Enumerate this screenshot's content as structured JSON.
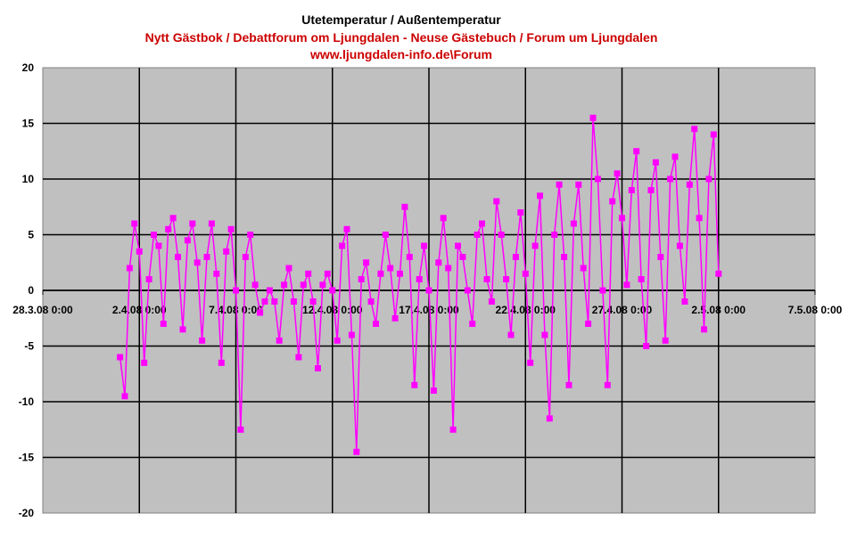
{
  "chart_data": {
    "type": "line",
    "title": "Utetemperatur / Außentemperatur",
    "subtitle_lines": [
      "Nytt Gästbok / Debattforum om Ljungdalen - Neuse Gästebuch / Forum um Ljungdalen",
      "www.ljungdalen-info.de\\Forum"
    ],
    "xlabel": "",
    "ylabel": "",
    "x_axis": {
      "type": "date",
      "range": [
        "2008-03-28T00:00",
        "2008-05-07T00:00"
      ],
      "tick_labels": [
        "28.3.08 0:00",
        "2.4.08 0:00",
        "7.4.08 0:00",
        "12.4.08 0:00",
        "17.4.08 0:00",
        "22.4.08 0:00",
        "27.4.08 0:00",
        "2.5.08 0:00",
        "7.5.08 0:00"
      ]
    },
    "ylim": [
      -20,
      20
    ],
    "y_ticks": [
      -20,
      -15,
      -10,
      -5,
      0,
      5,
      10,
      15,
      20
    ],
    "grid": true,
    "legend": "none",
    "colors": {
      "plot_background": "#c0c0c0",
      "series": "#ff00ff",
      "grid": "#000000",
      "title": "#000000",
      "subtitle": "#cc0000"
    },
    "series": [
      {
        "marker": "square",
        "points": [
          [
            "2008-04-01T00:00",
            -6.0
          ],
          [
            "2008-04-01T06:00",
            -9.5
          ],
          [
            "2008-04-01T12:00",
            2.0
          ],
          [
            "2008-04-01T18:00",
            6.0
          ],
          [
            "2008-04-02T00:00",
            3.5
          ],
          [
            "2008-04-02T06:00",
            -6.5
          ],
          [
            "2008-04-02T12:00",
            1.0
          ],
          [
            "2008-04-02T18:00",
            5.0
          ],
          [
            "2008-04-03T00:00",
            4.0
          ],
          [
            "2008-04-03T06:00",
            -3.0
          ],
          [
            "2008-04-03T12:00",
            5.5
          ],
          [
            "2008-04-03T18:00",
            6.5
          ],
          [
            "2008-04-04T00:00",
            3.0
          ],
          [
            "2008-04-04T06:00",
            -3.5
          ],
          [
            "2008-04-04T12:00",
            4.5
          ],
          [
            "2008-04-04T18:00",
            6.0
          ],
          [
            "2008-04-05T00:00",
            2.5
          ],
          [
            "2008-04-05T06:00",
            -4.5
          ],
          [
            "2008-04-05T12:00",
            3.0
          ],
          [
            "2008-04-05T18:00",
            6.0
          ],
          [
            "2008-04-06T00:00",
            1.5
          ],
          [
            "2008-04-06T06:00",
            -6.5
          ],
          [
            "2008-04-06T12:00",
            3.5
          ],
          [
            "2008-04-06T18:00",
            5.5
          ],
          [
            "2008-04-07T00:00",
            0.0
          ],
          [
            "2008-04-07T06:00",
            -12.5
          ],
          [
            "2008-04-07T12:00",
            3.0
          ],
          [
            "2008-04-07T18:00",
            5.0
          ],
          [
            "2008-04-08T00:00",
            0.5
          ],
          [
            "2008-04-08T06:00",
            -2.0
          ],
          [
            "2008-04-08T12:00",
            -1.0
          ],
          [
            "2008-04-08T18:00",
            0.0
          ],
          [
            "2008-04-09T00:00",
            -1.0
          ],
          [
            "2008-04-09T06:00",
            -4.5
          ],
          [
            "2008-04-09T12:00",
            0.5
          ],
          [
            "2008-04-09T18:00",
            2.0
          ],
          [
            "2008-04-10T00:00",
            -1.0
          ],
          [
            "2008-04-10T06:00",
            -6.0
          ],
          [
            "2008-04-10T12:00",
            0.5
          ],
          [
            "2008-04-10T18:00",
            1.5
          ],
          [
            "2008-04-11T00:00",
            -1.0
          ],
          [
            "2008-04-11T06:00",
            -7.0
          ],
          [
            "2008-04-11T12:00",
            0.5
          ],
          [
            "2008-04-11T18:00",
            1.5
          ],
          [
            "2008-04-12T00:00",
            0.0
          ],
          [
            "2008-04-12T06:00",
            -4.5
          ],
          [
            "2008-04-12T12:00",
            4.0
          ],
          [
            "2008-04-12T18:00",
            5.5
          ],
          [
            "2008-04-13T00:00",
            -4.0
          ],
          [
            "2008-04-13T06:00",
            -14.5
          ],
          [
            "2008-04-13T12:00",
            1.0
          ],
          [
            "2008-04-13T18:00",
            2.5
          ],
          [
            "2008-04-14T00:00",
            -1.0
          ],
          [
            "2008-04-14T06:00",
            -3.0
          ],
          [
            "2008-04-14T12:00",
            1.5
          ],
          [
            "2008-04-14T18:00",
            5.0
          ],
          [
            "2008-04-15T00:00",
            2.0
          ],
          [
            "2008-04-15T06:00",
            -2.5
          ],
          [
            "2008-04-15T12:00",
            1.5
          ],
          [
            "2008-04-15T18:00",
            7.5
          ],
          [
            "2008-04-16T00:00",
            3.0
          ],
          [
            "2008-04-16T06:00",
            -8.5
          ],
          [
            "2008-04-16T12:00",
            1.0
          ],
          [
            "2008-04-16T18:00",
            4.0
          ],
          [
            "2008-04-17T00:00",
            0.0
          ],
          [
            "2008-04-17T06:00",
            -9.0
          ],
          [
            "2008-04-17T12:00",
            2.5
          ],
          [
            "2008-04-17T18:00",
            6.5
          ],
          [
            "2008-04-18T00:00",
            2.0
          ],
          [
            "2008-04-18T06:00",
            -12.5
          ],
          [
            "2008-04-18T12:00",
            4.0
          ],
          [
            "2008-04-18T18:00",
            3.0
          ],
          [
            "2008-04-19T00:00",
            0.0
          ],
          [
            "2008-04-19T06:00",
            -3.0
          ],
          [
            "2008-04-19T12:00",
            5.0
          ],
          [
            "2008-04-19T18:00",
            6.0
          ],
          [
            "2008-04-20T00:00",
            1.0
          ],
          [
            "2008-04-20T06:00",
            -1.0
          ],
          [
            "2008-04-20T12:00",
            8.0
          ],
          [
            "2008-04-20T18:00",
            5.0
          ],
          [
            "2008-04-21T00:00",
            1.0
          ],
          [
            "2008-04-21T06:00",
            -4.0
          ],
          [
            "2008-04-21T12:00",
            3.0
          ],
          [
            "2008-04-21T18:00",
            7.0
          ],
          [
            "2008-04-22T00:00",
            1.5
          ],
          [
            "2008-04-22T06:00",
            -6.5
          ],
          [
            "2008-04-22T12:00",
            4.0
          ],
          [
            "2008-04-22T18:00",
            8.5
          ],
          [
            "2008-04-23T00:00",
            -4.0
          ],
          [
            "2008-04-23T06:00",
            -11.5
          ],
          [
            "2008-04-23T12:00",
            5.0
          ],
          [
            "2008-04-23T18:00",
            9.5
          ],
          [
            "2008-04-24T00:00",
            3.0
          ],
          [
            "2008-04-24T06:00",
            -8.5
          ],
          [
            "2008-04-24T12:00",
            6.0
          ],
          [
            "2008-04-24T18:00",
            9.5
          ],
          [
            "2008-04-25T00:00",
            2.0
          ],
          [
            "2008-04-25T06:00",
            -3.0
          ],
          [
            "2008-04-25T12:00",
            15.5
          ],
          [
            "2008-04-25T18:00",
            10.0
          ],
          [
            "2008-04-26T00:00",
            0.0
          ],
          [
            "2008-04-26T06:00",
            -8.5
          ],
          [
            "2008-04-26T12:00",
            8.0
          ],
          [
            "2008-04-26T18:00",
            10.5
          ],
          [
            "2008-04-27T00:00",
            6.5
          ],
          [
            "2008-04-27T06:00",
            0.5
          ],
          [
            "2008-04-27T12:00",
            9.0
          ],
          [
            "2008-04-27T18:00",
            12.5
          ],
          [
            "2008-04-28T00:00",
            1.0
          ],
          [
            "2008-04-28T06:00",
            -5.0
          ],
          [
            "2008-04-28T12:00",
            9.0
          ],
          [
            "2008-04-28T18:00",
            11.5
          ],
          [
            "2008-04-29T00:00",
            3.0
          ],
          [
            "2008-04-29T06:00",
            -4.5
          ],
          [
            "2008-04-29T12:00",
            10.0
          ],
          [
            "2008-04-29T18:00",
            12.0
          ],
          [
            "2008-04-30T00:00",
            4.0
          ],
          [
            "2008-04-30T06:00",
            -1.0
          ],
          [
            "2008-04-30T12:00",
            9.5
          ],
          [
            "2008-04-30T18:00",
            14.5
          ],
          [
            "2008-05-01T00:00",
            6.5
          ],
          [
            "2008-05-01T06:00",
            -3.5
          ],
          [
            "2008-05-01T12:00",
            10.0
          ],
          [
            "2008-05-01T18:00",
            14.0
          ],
          [
            "2008-05-02T00:00",
            1.5
          ]
        ]
      }
    ]
  }
}
